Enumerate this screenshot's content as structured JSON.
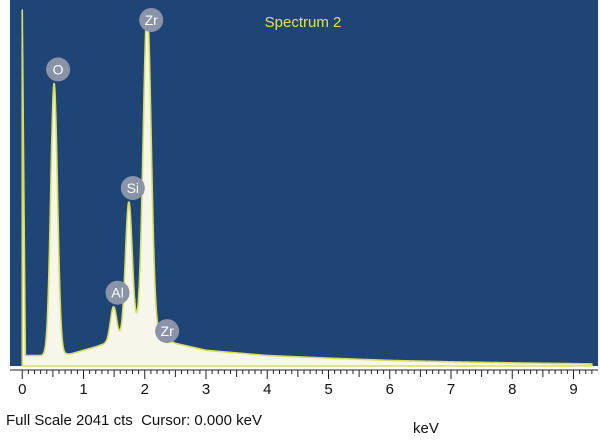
{
  "chart_data": {
    "type": "area",
    "title": "Spectrum 2",
    "xlabel": "keV",
    "ylabel": "",
    "xlim": [
      -0.2,
      9.4
    ],
    "ylim": [
      0,
      2041
    ],
    "x_ticks": [
      0,
      1,
      2,
      3,
      4,
      5,
      6,
      7,
      8,
      9
    ],
    "peaks": [
      {
        "label": "O",
        "x": 0.52,
        "y": 1620,
        "width": 0.055
      },
      {
        "label": "Al",
        "x": 1.49,
        "y": 340,
        "width": 0.05
      },
      {
        "label": "Si",
        "x": 1.74,
        "y": 940,
        "width": 0.055
      },
      {
        "label": "Zr",
        "x": 2.04,
        "y": 2041,
        "width": 0.065
      },
      {
        "label": "Zr",
        "x": 2.3,
        "y": 120,
        "width": 0.05
      }
    ],
    "background": [
      {
        "x": 0.0,
        "y": 2041
      },
      {
        "x": 0.05,
        "y": 60
      },
      {
        "x": 0.3,
        "y": 60
      },
      {
        "x": 0.8,
        "y": 70
      },
      {
        "x": 1.2,
        "y": 110
      },
      {
        "x": 1.6,
        "y": 160
      },
      {
        "x": 2.0,
        "y": 220
      },
      {
        "x": 2.5,
        "y": 130
      },
      {
        "x": 3.0,
        "y": 90
      },
      {
        "x": 4.0,
        "y": 60
      },
      {
        "x": 5.0,
        "y": 45
      },
      {
        "x": 6.0,
        "y": 32
      },
      {
        "x": 7.0,
        "y": 24
      },
      {
        "x": 8.0,
        "y": 18
      },
      {
        "x": 9.3,
        "y": 12
      }
    ],
    "colors": {
      "plot_background": "#1f4577",
      "fill": "#f6f6ea",
      "outline": "#d8de5c",
      "title": "#e7e24a",
      "peak_marker": "#8a93a8"
    }
  },
  "status": {
    "full_scale": "Full Scale 2041 cts",
    "cursor": "Cursor: 0.000 keV"
  }
}
